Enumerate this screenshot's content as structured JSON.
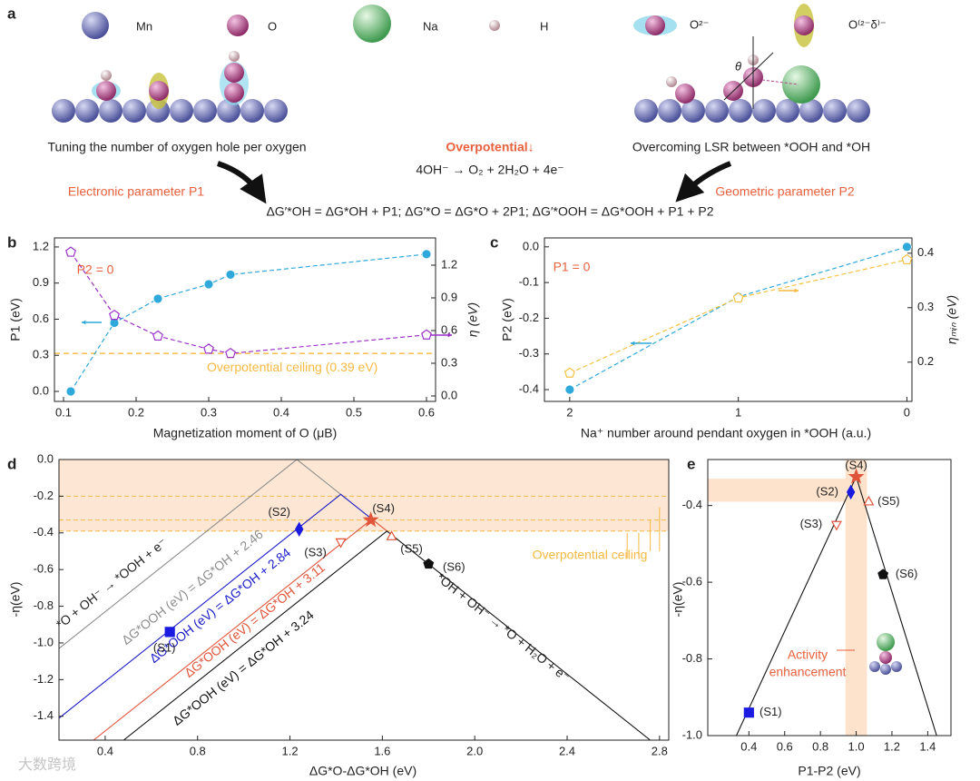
{
  "panel_labels": [
    "a",
    "b",
    "c",
    "d",
    "e"
  ],
  "watermark": "大数跨境",
  "schematic": {
    "legend": [
      "Mn",
      "O",
      "Na",
      "H",
      "O²⁻",
      "O⁽²⁻δ⁾⁻"
    ],
    "left_caption": "Tuning the number of oxygen hole per oxygen",
    "left_parameter": "Electronic parameter  P1",
    "center_title": "Overpotential↓",
    "center_reaction": "4OH⁻ → O₂ + 2H₂O + 4e⁻",
    "right_caption": "Overcoming LSR between *OOH and *OH",
    "right_parameter": "Geometric parameter P2",
    "angle_label": "θ",
    "equation": "ΔG′*OH = ΔG*OH + P1;  ΔG′*O = ΔG*O + 2P1;  ΔG′*OOH = ΔG*OOH + P1 + P2"
  },
  "chart_data": [
    {
      "type": "line",
      "xlabel": "Magnetization moment of O (μB)",
      "ylabel": "P1 (eV)",
      "y2label": "η (eV)",
      "annotation": "P2 = 0",
      "x": [
        0.11,
        0.17,
        0.23,
        0.3,
        0.33,
        0.6
      ],
      "xlim": [
        0.0875,
        0.6125
      ],
      "xticks": [
        0.1,
        0.2,
        0.3,
        0.4,
        0.5,
        0.6
      ],
      "ylim": [
        -0.083,
        1.275
      ],
      "yticks": [
        {
          "value": 0,
          "label": "0.0"
        },
        0.3,
        0.6,
        0.9,
        1.2
      ],
      "y2lim": [
        -0.05,
        1.45
      ],
      "y2ticks": [
        {
          "value": 0,
          "label": "0.0"
        },
        0.3,
        0.6,
        0.9,
        1.2
      ],
      "series": [
        {
          "color": "#2fa9dc",
          "marker": "circle",
          "filled": true,
          "values": [
            0.0,
            0.57,
            0.77,
            0.89,
            0.97,
            1.14
          ]
        },
        {
          "color": "#9b30c8",
          "marker": "pentagon",
          "filled": false,
          "axis": "y2",
          "values": [
            1.32,
            0.74,
            0.55,
            0.43,
            0.39,
            0.56
          ]
        }
      ],
      "reference_line": {
        "label": "Overpotential ceiling (0.39 eV)",
        "value": 0.39,
        "axis": "y2",
        "color": "#f5b942"
      }
    },
    {
      "type": "line",
      "xlabel": "Na⁺ number around pendant oxygen in *OOH (a.u.)",
      "ylabel": "P2 (eV)",
      "y2label": "ηₘᵢₙ (eV)",
      "annotation": "P1 = 0",
      "x": [
        2,
        1,
        0
      ],
      "xlim": [
        2.15,
        -0.03
      ],
      "xticks": [
        2,
        1,
        0
      ],
      "ylim": [
        -0.433,
        0.025
      ],
      "yticks": [
        -0.4,
        -0.3,
        -0.2,
        -0.1,
        {
          "value": 0,
          "label": "0.0"
        }
      ],
      "y2lim": [
        0.128,
        0.428
      ],
      "y2ticks": [
        0.2,
        0.3,
        0.4
      ],
      "series": [
        {
          "color": "#2fa9dc",
          "marker": "circle",
          "filled": true,
          "values": [
            -0.4,
            -0.14,
            0.0
          ]
        },
        {
          "color": "#f5c242",
          "marker": "pentagon",
          "filled": false,
          "axis": "y2",
          "values": [
            0.18,
            0.318,
            0.388
          ]
        }
      ]
    },
    {
      "type": "scatter",
      "xlabel": "ΔG*O-ΔG*OH (eV)",
      "ylabel": "-η(eV)",
      "annotation": "Overpotential ceiling",
      "xlim": [
        0.2,
        2.84
      ],
      "xticks": [
        0.4,
        0.8,
        1.2,
        1.6,
        {
          "value": 2,
          "label": "2.0"
        },
        2.4,
        2.8
      ],
      "ylim": [
        -1.53,
        0
      ],
      "yticks": [
        {
          "value": 0,
          "label": "0.0"
        },
        -0.2,
        -0.4,
        -0.6,
        -0.8,
        {
          "value": -1,
          "label": "-1.0"
        },
        -1.2,
        -1.4
      ],
      "ceiling_lines": [
        -0.2,
        -0.33,
        -0.39
      ],
      "lines": [
        {
          "label": "ΔG*OOH (eV) = ΔG*OH + 2.46",
          "color": "#8c8c8c",
          "x": [
            0.2,
            1.23,
            1.42
          ],
          "y": [
            -1.03,
            0,
            -0.19
          ]
        },
        {
          "label": "ΔG*OOH (eV) = ΔG*OH + 2.84",
          "color": "#1a1ac8",
          "x": [
            0.2,
            1.42,
            1.555
          ],
          "y": [
            -1.41,
            -0.19,
            -0.325
          ]
        },
        {
          "label": "ΔG*OOH (eV) = ΔG*OH + 3.11",
          "color": "#e0553a",
          "x": [
            0.35,
            1.555,
            1.62
          ],
          "y": [
            -1.53,
            -0.325,
            -0.39
          ]
        },
        {
          "label": "ΔG*OOH (eV) = ΔG*OH + 3.24",
          "color": "#111111",
          "x": [
            0.48,
            1.62,
            2.76
          ],
          "y": [
            -1.53,
            -0.39,
            -1.53
          ]
        }
      ],
      "reactions": [
        "*O + OH⁻ → *OOH + e⁻",
        "*OH + OH⁻ → *O + H₂O + e⁻"
      ],
      "point_labels": [
        "(S1)",
        "(S2)",
        "(S3)",
        "(S4)",
        "(S5)",
        "(S6)"
      ],
      "x": [
        0.68,
        1.24,
        1.42,
        1.55,
        1.64,
        1.8
      ],
      "values": [
        -0.94,
        -0.38,
        -0.45,
        -0.33,
        -0.42,
        -0.57
      ],
      "markers": [
        "square",
        "diamond",
        "triangle-down",
        "star",
        "triangle-up",
        "pentagon"
      ],
      "colors": [
        "#1a1ae0",
        "#1a1ae0",
        "#e0553a",
        "#e0553a",
        "#e0553a",
        "#111111"
      ],
      "filled": [
        true,
        true,
        false,
        true,
        false,
        true
      ]
    },
    {
      "type": "scatter",
      "xlabel": "P1-P2 (eV)",
      "ylabel": "-η(eV)",
      "annotation": [
        "Activity",
        "enhancement"
      ],
      "xlim": [
        0.17,
        1.53
      ],
      "xticks": [
        0.4,
        0.6,
        0.8,
        {
          "value": 1,
          "label": "1.0"
        },
        1.2,
        1.4
      ],
      "ylim": [
        -1.0,
        -0.28
      ],
      "yticks": [
        {
          "value": -1,
          "label": "-1.0"
        },
        -0.8,
        -0.6,
        -0.4
      ],
      "highlight_x": [
        0.94,
        1.06
      ],
      "highlight_y": [
        -0.39,
        -0.33
      ],
      "lines": [
        {
          "color": "#111111",
          "x": [
            0.33,
            1.0,
            1.45
          ],
          "y": [
            -1.0,
            -0.325,
            -1.0
          ]
        }
      ],
      "point_labels": [
        "(S1)",
        "(S2)",
        "(S3)",
        "(S4)",
        "(S5)",
        "(S6)"
      ],
      "x": [
        0.4,
        0.97,
        0.89,
        1.0,
        1.07,
        1.15
      ],
      "values": [
        -0.94,
        -0.365,
        -0.45,
        -0.325,
        -0.39,
        -0.58
      ],
      "markers": [
        "square",
        "diamond",
        "triangle-down",
        "star",
        "triangle-up",
        "pentagon"
      ],
      "colors": [
        "#1a1ae0",
        "#1a1ae0",
        "#e0553a",
        "#e0553a",
        "#e0553a",
        "#111111"
      ],
      "filled": [
        true,
        true,
        false,
        true,
        false,
        true
      ]
    }
  ]
}
